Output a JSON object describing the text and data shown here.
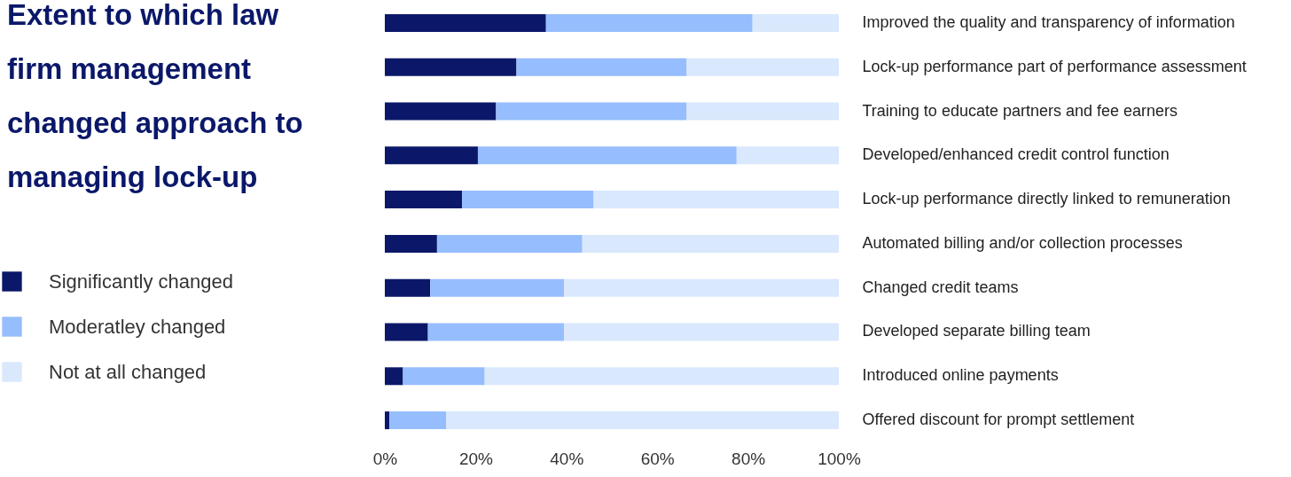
{
  "chart_data": {
    "type": "bar",
    "orientation": "horizontal",
    "stacked": true,
    "title": "Extent to which law firm management changed approach to managing lock-up",
    "categories": [
      "Improved the quality and transparency of information",
      "Lock-up performance part of performance assessment",
      "Training to educate partners and fee earners",
      "Developed/enhanced credit control function",
      "Lock-up performance directly linked to remuneration",
      "Automated billing and/or collection processes",
      "Changed credit teams",
      "Developed separate billing team",
      "Introduced online payments",
      "Offered discount for prompt settlement"
    ],
    "series": [
      {
        "name": "Significantly changed",
        "color": "#0b1869",
        "values": [
          35.5,
          29,
          24.5,
          20.5,
          17,
          11.5,
          10,
          9.5,
          4,
          1
        ]
      },
      {
        "name": "Moderatley changed",
        "color": "#96bdfd",
        "values": [
          45.5,
          37.5,
          42,
          57,
          29,
          32,
          29.5,
          30,
          18,
          12.5
        ]
      },
      {
        "name": "Not at all changed",
        "color": "#d9e8fd",
        "values": [
          19,
          33.5,
          33.5,
          22.5,
          54,
          56.5,
          60.5,
          60.5,
          78,
          86.5
        ]
      }
    ],
    "xlim": [
      0,
      100
    ],
    "xticks": [
      {
        "value": 0,
        "label": "0%"
      },
      {
        "value": 20,
        "label": "20%"
      },
      {
        "value": 40,
        "label": "40%"
      },
      {
        "value": 60,
        "label": "60%"
      },
      {
        "value": 80,
        "label": "80%"
      },
      {
        "value": 100,
        "label": "100%"
      }
    ],
    "grid": false,
    "legend": "left"
  }
}
